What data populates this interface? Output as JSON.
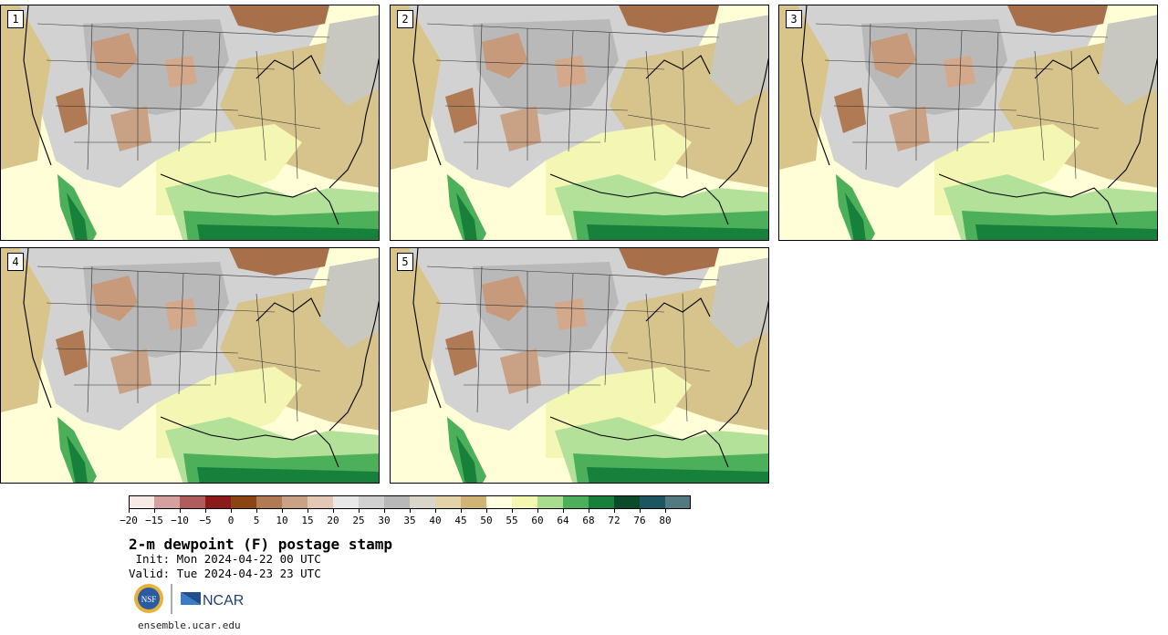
{
  "panels": [
    {
      "label": "1"
    },
    {
      "label": "2"
    },
    {
      "label": "3"
    },
    {
      "label": "4"
    },
    {
      "label": "5"
    }
  ],
  "colorbar": {
    "colors": [
      "#f7e9e6",
      "#d4a0a0",
      "#b05c5c",
      "#8c1a1a",
      "#8b4513",
      "#b07a55",
      "#c9a185",
      "#e5c7b5",
      "#e8e8e8",
      "#d0d0d0",
      "#b8b8b8",
      "#d8d6c8",
      "#e2d3a8",
      "#cfb475",
      "#ffffe0",
      "#f3f7b0",
      "#a8dd90",
      "#4caf5a",
      "#17803a",
      "#0b4a2a",
      "#1d5560",
      "#527a80"
    ],
    "tick_labels": [
      "−20",
      "−15",
      "−10",
      "−5",
      "0",
      "5",
      "10",
      "15",
      "20",
      "25",
      "30",
      "35",
      "40",
      "45",
      "50",
      "55",
      "60",
      "64",
      "68",
      "72",
      "76",
      "80"
    ]
  },
  "title": "2-m dewpoint (F) postage stamp",
  "init": " Init: Mon 2024-04-22 00 UTC",
  "valid": "Valid: Tue 2024-04-23 23 UTC",
  "logos": {
    "nsf": "NSF",
    "ncar": "NCAR"
  },
  "website": "ensemble.ucar.edu"
}
